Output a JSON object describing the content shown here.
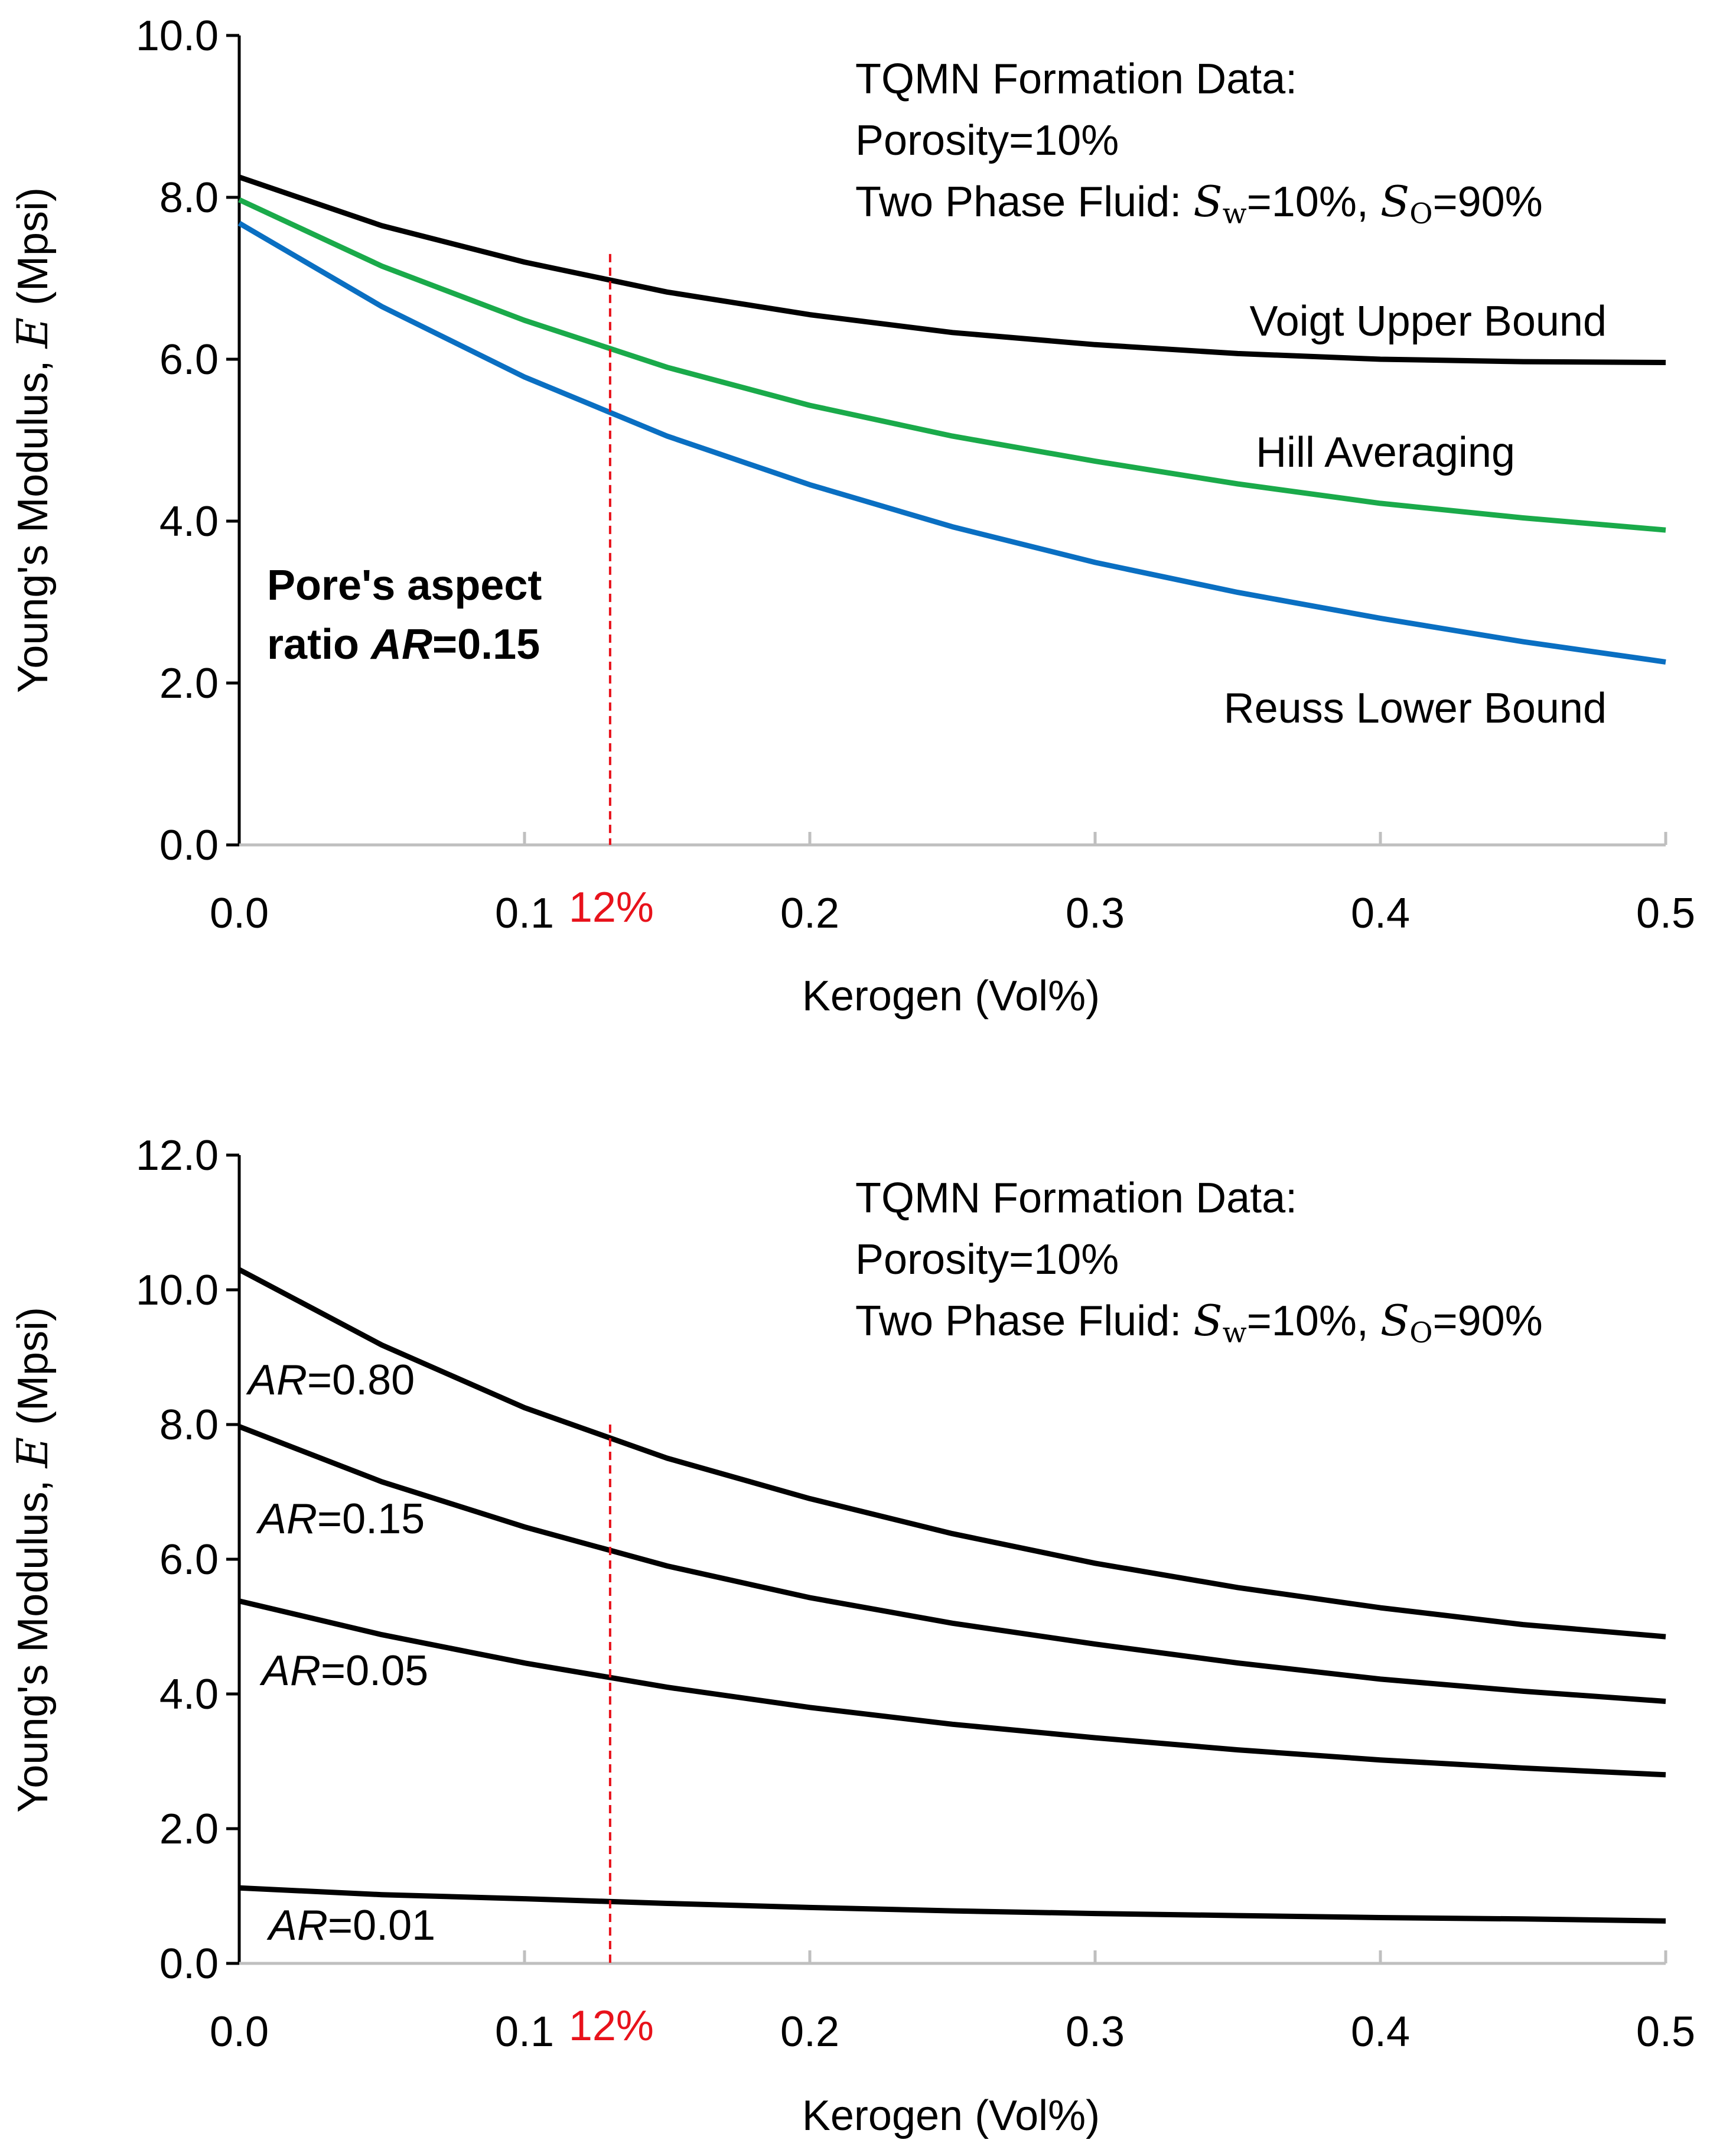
{
  "colors": {
    "voigt": "#000000",
    "hill": "#1aaa4a",
    "reuss": "#0a6fc2",
    "marker": "#e8121b",
    "axis": "#000000",
    "tick": "#bfbfbf"
  },
  "chart_data": [
    {
      "type": "line",
      "xlabel": "Kerogen (Vol%)",
      "ylabel_prefix": "Young's Modulus,",
      "ylabel_symbol": "E",
      "ylabel_unit": "(Mpsi)",
      "xlim": [
        0,
        0.5
      ],
      "ylim": [
        0,
        10
      ],
      "x_ticks": [
        "0.0",
        "0.1",
        "0.2",
        "0.3",
        "0.4",
        "0.5"
      ],
      "y_ticks": [
        "0.0",
        "2.0",
        "4.0",
        "6.0",
        "8.0",
        "10.0"
      ],
      "marker": {
        "x": 0.13,
        "label": "12%"
      },
      "info": {
        "line1": "TQMN Formation Data:",
        "line2": "Porosity=10%",
        "line3_prefix": "Two Phase Fluid: ",
        "sw_symbol": "S",
        "sw_sub": "w",
        "sw_value": "=10%, ",
        "so_symbol": "S",
        "so_sub": "O",
        "so_value": "=90%"
      },
      "aspect_note": {
        "line1": "Pore's aspect",
        "line2_prefix": "ratio ",
        "line2_ar": "AR",
        "line2_value": "=0.15"
      },
      "x": [
        0,
        0.05,
        0.1,
        0.15,
        0.2,
        0.25,
        0.3,
        0.35,
        0.4,
        0.45,
        0.5
      ],
      "series": [
        {
          "name": "Voigt Upper Bound",
          "color_key": "voigt",
          "values": [
            8.25,
            7.65,
            7.2,
            6.83,
            6.55,
            6.33,
            6.18,
            6.07,
            6.0,
            5.97,
            5.96
          ]
        },
        {
          "name": "Hill Averaging",
          "color_key": "hill",
          "values": [
            7.97,
            7.15,
            6.48,
            5.9,
            5.43,
            5.05,
            4.74,
            4.46,
            4.22,
            4.04,
            3.89
          ]
        },
        {
          "name": "Reuss Lower Bound",
          "color_key": "reuss",
          "values": [
            7.68,
            6.65,
            5.78,
            5.05,
            4.45,
            3.93,
            3.49,
            3.12,
            2.8,
            2.51,
            2.26
          ]
        }
      ]
    },
    {
      "type": "line",
      "xlabel": "Kerogen (Vol%)",
      "ylabel_prefix": "Young's Modulus,",
      "ylabel_symbol": "E",
      "ylabel_unit": "(Mpsi)",
      "xlim": [
        0,
        0.5
      ],
      "ylim": [
        0,
        12
      ],
      "x_ticks": [
        "0.0",
        "0.1",
        "0.2",
        "0.3",
        "0.4",
        "0.5"
      ],
      "y_ticks": [
        "0.0",
        "2.0",
        "4.0",
        "6.0",
        "8.0",
        "10.0",
        "12.0"
      ],
      "marker": {
        "x": 0.13,
        "label": "12%"
      },
      "info": {
        "line1": "TQMN Formation Data:",
        "line2": "Porosity=10%",
        "line3_prefix": "Two Phase Fluid: ",
        "sw_symbol": "S",
        "sw_sub": "w",
        "sw_value": "=10%, ",
        "so_symbol": "S",
        "so_sub": "O",
        "so_value": "=90%"
      },
      "x": [
        0,
        0.05,
        0.1,
        0.15,
        0.2,
        0.25,
        0.3,
        0.35,
        0.4,
        0.45,
        0.5
      ],
      "series": [
        {
          "name": "AR=0.80",
          "label_prefix": "AR",
          "label_value": "=0.80",
          "color_key": "voigt",
          "values": [
            10.3,
            9.18,
            8.25,
            7.5,
            6.9,
            6.38,
            5.94,
            5.58,
            5.28,
            5.03,
            4.85
          ]
        },
        {
          "name": "AR=0.15",
          "label_prefix": "AR",
          "label_value": "=0.15",
          "color_key": "voigt",
          "values": [
            7.97,
            7.15,
            6.48,
            5.9,
            5.43,
            5.05,
            4.74,
            4.46,
            4.22,
            4.04,
            3.89
          ]
        },
        {
          "name": "AR=0.05",
          "label_prefix": "AR",
          "label_value": "=0.05",
          "color_key": "voigt",
          "values": [
            5.38,
            4.88,
            4.46,
            4.1,
            3.8,
            3.55,
            3.35,
            3.17,
            3.02,
            2.9,
            2.8
          ]
        },
        {
          "name": "AR=0.01",
          "label_prefix": "AR",
          "label_value": "=0.01",
          "color_key": "voigt",
          "values": [
            1.12,
            1.02,
            0.96,
            0.89,
            0.83,
            0.78,
            0.74,
            0.71,
            0.68,
            0.66,
            0.63
          ]
        }
      ]
    }
  ]
}
